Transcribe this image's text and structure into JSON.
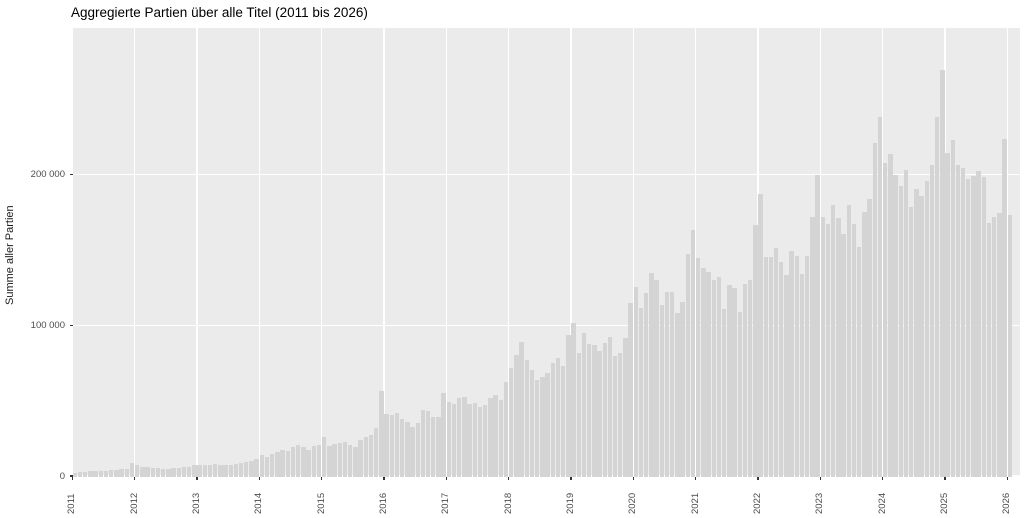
{
  "title": "Aggregierte Partien über alle Titel (2011 bis 2026)",
  "chart_data": {
    "type": "bar",
    "title": "Aggregierte Partien über alle Titel (2011 bis 2026)",
    "xlabel": "",
    "ylabel": "Summe aller Partien",
    "bar_fill": "#D4D4D4",
    "panel_background": "#EBEBEB",
    "gridline_color": "#FFFFFF",
    "grid": "major-only",
    "legend": "none",
    "ylim": [
      0,
      297000
    ],
    "y_ticks": [
      {
        "value": 0,
        "label": "0"
      },
      {
        "value": 100000,
        "label": "100 000"
      },
      {
        "value": 200000,
        "label": "200 000"
      }
    ],
    "x_tick_labels": [
      "2011",
      "2012",
      "2013",
      "2014",
      "2015",
      "2016",
      "2017",
      "2018",
      "2019",
      "2020",
      "2021",
      "2022",
      "2023",
      "2024",
      "2025",
      "2026"
    ],
    "x_unit": "month",
    "x_range": "2011-01 to 2026-01",
    "values_by_year": {
      "2011": [
        2200,
        2400,
        2700,
        3100,
        3000,
        3300,
        3500,
        3800,
        4100,
        4400,
        4800,
        8800
      ],
      "2012": [
        7500,
        6200,
        5800,
        5300,
        5000,
        4800,
        4600,
        5000,
        5300,
        5700,
        6000,
        7000
      ],
      "2013": [
        7300,
        7000,
        7500,
        7800,
        7300,
        7000,
        7600,
        8000,
        8500,
        9200,
        9800,
        11500
      ],
      "2014": [
        13900,
        12800,
        14400,
        16100,
        17200,
        16800,
        19400,
        20600,
        19000,
        17200,
        20100,
        20800
      ],
      "2015": [
        25600,
        19900,
        21200,
        22100,
        22800,
        20600,
        19400,
        23900,
        25600,
        27500,
        32000,
        56500
      ],
      "2016": [
        41100,
        40400,
        41600,
        37600,
        36000,
        32700,
        35400,
        43800,
        43100,
        38900,
        38900,
        55200
      ],
      "2017": [
        49300,
        47700,
        51500,
        52600,
        47700,
        48600,
        46000,
        47100,
        51500,
        53700,
        50400,
        62500
      ],
      "2018": [
        71400,
        80200,
        89100,
        76900,
        70300,
        63600,
        65900,
        68500,
        74700,
        78000,
        72900,
        93200
      ],
      "2019": [
        101500,
        81300,
        95000,
        87500,
        86900,
        83100,
        88400,
        92400,
        79600,
        81800,
        91300,
        114900
      ],
      "2020": [
        125500,
        111200,
        121600,
        134800,
        130000,
        113400,
        122200,
        122200,
        107800,
        115300,
        147200,
        163100
      ],
      "2021": [
        144700,
        137700,
        135000,
        130000,
        132100,
        110700,
        126600,
        124800,
        108900,
        127000,
        130000,
        166400
      ],
      "2022": [
        187000,
        145400,
        145400,
        151400,
        142100,
        133300,
        149200,
        145900,
        133700,
        145600,
        172000,
        199500
      ],
      "2023": [
        172000,
        167000,
        180000,
        171000,
        160500,
        179500,
        167000,
        152000,
        175200,
        184000,
        221000,
        237800
      ],
      "2024": [
        207300,
        213500,
        199600,
        192300,
        203000,
        178600,
        190000,
        186000,
        195500,
        206200,
        238200,
        269200
      ],
      "2025": [
        213900,
        222800,
        206200,
        204000,
        197000,
        199000,
        202200,
        198400,
        167900,
        171500,
        174600,
        223200
      ],
      "2026": [
        173000
      ]
    }
  }
}
